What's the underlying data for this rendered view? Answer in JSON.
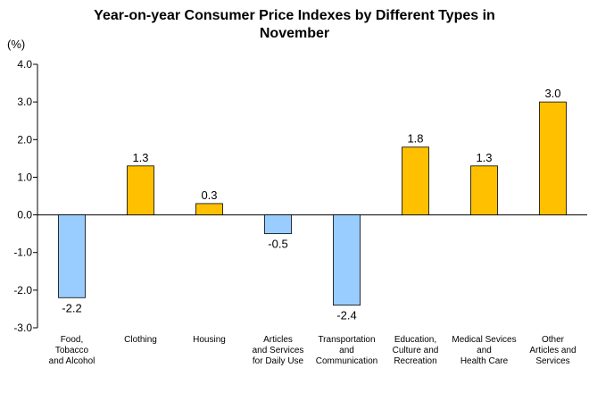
{
  "chart_data": {
    "type": "bar",
    "title": "Year-on-year Consumer Price Indexes by Different Types in\nNovember",
    "unit_label": "(%)",
    "categories": [
      [
        "Food,",
        "Tobacco",
        "and Alcohol"
      ],
      [
        "Clothing"
      ],
      [
        "Housing"
      ],
      [
        "Articles",
        "and Services",
        "for Daily Use"
      ],
      [
        "Transportation",
        "and",
        "Communication"
      ],
      [
        "Education,",
        "Culture and",
        "Recreation"
      ],
      [
        "Medical Sevices",
        "and",
        "Health Care"
      ],
      [
        "Other",
        "Articles and",
        "Services"
      ]
    ],
    "values": [
      -2.2,
      1.3,
      0.3,
      -0.5,
      -2.4,
      1.8,
      1.3,
      3.0
    ],
    "value_labels": [
      "-2.2",
      "1.3",
      "0.3",
      "-0.5",
      "-2.4",
      "1.8",
      "1.3",
      "3.0"
    ],
    "ylim": [
      -3.0,
      4.0
    ],
    "yticks": [
      4.0,
      3.0,
      2.0,
      1.0,
      0.0,
      -1.0,
      -2.0,
      -3.0
    ],
    "ytick_labels": [
      "4.0",
      "3.0",
      "2.0",
      "1.0",
      "0.0",
      "-1.0",
      "-2.0",
      "-3.0"
    ],
    "grid": false,
    "legend": "none",
    "colors": {
      "positive_fill": "#FFC000",
      "negative_fill": "#99CCFF",
      "bar_stroke": "#000000",
      "axis": "#000000"
    }
  }
}
